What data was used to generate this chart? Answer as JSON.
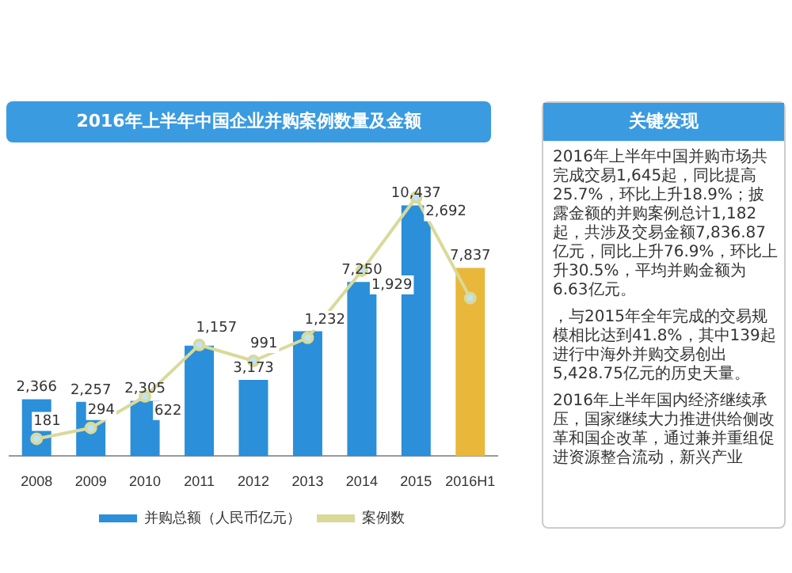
{
  "chart_data": {
    "type": "bar",
    "title": "2016年上半年中国企业并购案例数量及金额",
    "categories": [
      "2008",
      "2009",
      "2010",
      "2011",
      "2012",
      "2013",
      "2014",
      "2015",
      "2016H1"
    ],
    "series": [
      {
        "name": "并购总额（人民币亿元）",
        "color": "#2b8fd9",
        "colors": [
          "#2b8fd9",
          "#2b8fd9",
          "#2b8fd9",
          "#2b8fd9",
          "#2b8fd9",
          "#2b8fd9",
          "#2b8fd9",
          "#2b8fd9",
          "#e9b73a"
        ],
        "values": [
          2366,
          2257,
          2305,
          4600,
          3173,
          5200,
          7250,
          10437,
          7837
        ],
        "value_labels": [
          "2,366",
          "2,257",
          "2,305",
          null,
          "3,173",
          null,
          "7,250",
          "10,437",
          "7,837"
        ]
      },
      {
        "name": "案例数",
        "type": "line",
        "axis": "y2",
        "color": "#d9d99a",
        "values": [
          181,
          294,
          622,
          1157,
          991,
          1232,
          1929,
          2692,
          1645
        ],
        "value_labels": [
          "181",
          "294",
          "622",
          "1,157",
          "991",
          "1,232",
          "1,929",
          "2,692",
          null
        ]
      }
    ],
    "tick_labels": "x",
    "grid": false,
    "legend": "bottom",
    "marker": "circle",
    "line_style": "solid",
    "annotations": [
      "关键发现",
      "2016年上半年中国并购市场共完成交易1,645起，同比提高25.7%，环比上升18.9%；披露金额的并购案例总计1,182起，共涉及交易金额7,836.87亿元，同比上升76.9%，环比上升30.5%，平均并购金额为6.63亿元。",
      "，与2015年全年完成的交易规模相比达到41.8%，其中139起进行中海外并购交易创出5,428.75亿元的历史天量。",
      "2016年上半年国内经济继续承压，国家继续大力推进供给侧改革和国企改革，通过兼并重组促进资源整合流动，新兴产业"
    ]
  }
}
